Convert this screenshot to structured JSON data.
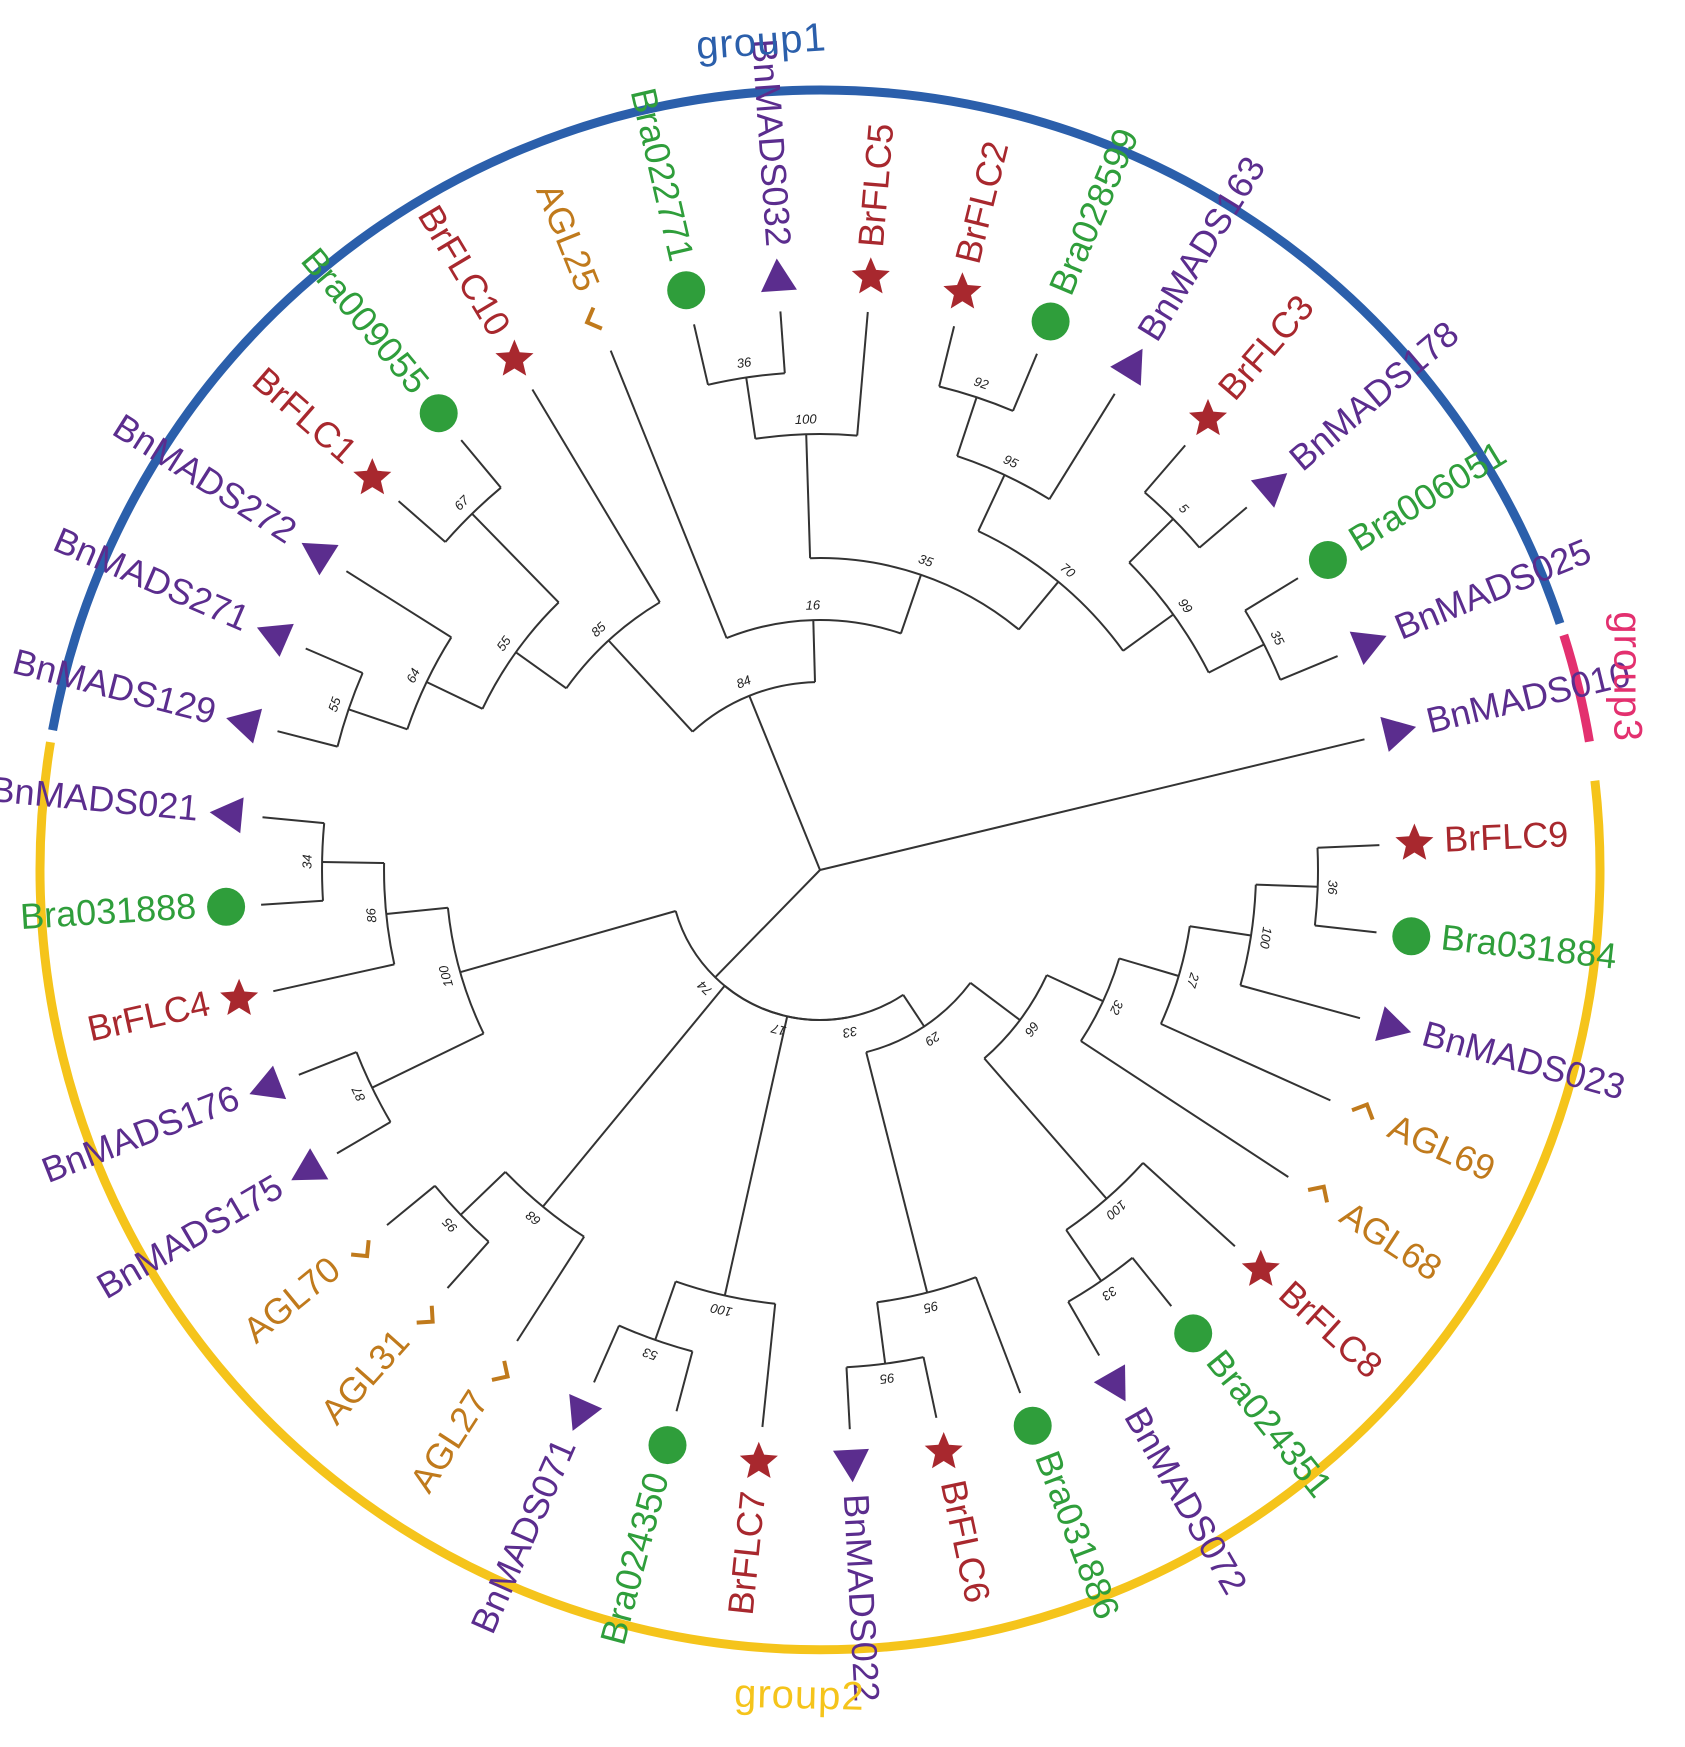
{
  "colors": {
    "group1": "#2b5fab",
    "group2": "#f5c41b",
    "group3": "#e3306f",
    "BnMADS": "#5b2d8e",
    "BrFLC": "#a8282e",
    "Bra": "#2f9e3b",
    "AGL": "#c07a1c",
    "branch": "#333333"
  },
  "groups": [
    {
      "id": "group1",
      "label": "group1",
      "color": "#2b5fab"
    },
    {
      "id": "group2",
      "label": "group2",
      "color": "#f5c41b"
    },
    {
      "id": "group3",
      "label": "group3",
      "color": "#e3306f"
    }
  ],
  "marker_legend": {
    "BnMADS": "blue-triangle",
    "BrFLC": "red-star",
    "Bra": "green-circle",
    "AGL": "orange-corner"
  },
  "leaves": [
    {
      "name": "BnMADS010",
      "family": "BnMADS",
      "group": "group3"
    },
    {
      "name": "BnMADS025",
      "family": "BnMADS",
      "group": "group1"
    },
    {
      "name": "Bra006051",
      "family": "Bra",
      "group": "group1"
    },
    {
      "name": "BnMADS178",
      "family": "BnMADS",
      "group": "group1"
    },
    {
      "name": "BrFLC3",
      "family": "BrFLC",
      "group": "group1"
    },
    {
      "name": "BnMADS163",
      "family": "BnMADS",
      "group": "group1"
    },
    {
      "name": "Bra028599",
      "family": "Bra",
      "group": "group1"
    },
    {
      "name": "BrFLC2",
      "family": "BrFLC",
      "group": "group1"
    },
    {
      "name": "BrFLC5",
      "family": "BrFLC",
      "group": "group1"
    },
    {
      "name": "BnMADS032",
      "family": "BnMADS",
      "group": "group1"
    },
    {
      "name": "Bra022771",
      "family": "Bra",
      "group": "group1"
    },
    {
      "name": "AGL25",
      "family": "AGL",
      "group": "group1"
    },
    {
      "name": "BrFLC10",
      "family": "BrFLC",
      "group": "group1"
    },
    {
      "name": "Bra009055",
      "family": "Bra",
      "group": "group1"
    },
    {
      "name": "BrFLC1",
      "family": "BrFLC",
      "group": "group1"
    },
    {
      "name": "BnMADS272",
      "family": "BnMADS",
      "group": "group1"
    },
    {
      "name": "BnMADS271",
      "family": "BnMADS",
      "group": "group1"
    },
    {
      "name": "BnMADS129",
      "family": "BnMADS",
      "group": "group1"
    },
    {
      "name": "BnMADS021",
      "family": "BnMADS",
      "group": "group2"
    },
    {
      "name": "Bra031888",
      "family": "Bra",
      "group": "group2"
    },
    {
      "name": "BrFLC4",
      "family": "BrFLC",
      "group": "group2"
    },
    {
      "name": "BnMADS176",
      "family": "BnMADS",
      "group": "group2"
    },
    {
      "name": "BnMADS175",
      "family": "BnMADS",
      "group": "group2"
    },
    {
      "name": "AGL70",
      "family": "AGL",
      "group": "group2"
    },
    {
      "name": "AGL31",
      "family": "AGL",
      "group": "group2"
    },
    {
      "name": "AGL27",
      "family": "AGL",
      "group": "group2"
    },
    {
      "name": "BnMADS071",
      "family": "BnMADS",
      "group": "group2"
    },
    {
      "name": "Bra024350",
      "family": "Bra",
      "group": "group2"
    },
    {
      "name": "BrFLC7",
      "family": "BrFLC",
      "group": "group2"
    },
    {
      "name": "BnMADS022",
      "family": "BnMADS",
      "group": "group2"
    },
    {
      "name": "BrFLC6",
      "family": "BrFLC",
      "group": "group2"
    },
    {
      "name": "Bra031886",
      "family": "Bra",
      "group": "group2"
    },
    {
      "name": "BnMADS072",
      "family": "BnMADS",
      "group": "group2"
    },
    {
      "name": "Bra024351",
      "family": "Bra",
      "group": "group2"
    },
    {
      "name": "BrFLC8",
      "family": "BrFLC",
      "group": "group2"
    },
    {
      "name": "AGL68",
      "family": "AGL",
      "group": "group2"
    },
    {
      "name": "AGL69",
      "family": "AGL",
      "group": "group2"
    },
    {
      "name": "BnMADS023",
      "family": "BnMADS",
      "group": "group2"
    },
    {
      "name": "Bra031884",
      "family": "Bra",
      "group": "group2"
    },
    {
      "name": "BrFLC9",
      "family": "BrFLC",
      "group": "group2"
    }
  ],
  "tree": {
    "children": [
      {
        "leaf": "BnMADS010"
      },
      {
        "support": "84",
        "children": [
          {
            "support": "16",
            "children": [
              {
                "support": "35",
                "children": [
                  {
                    "support": "70",
                    "children": [
                      {
                        "support": "99",
                        "children": [
                          {
                            "support": "35",
                            "children": [
                              {
                                "leaf": "BnMADS025"
                              },
                              {
                                "leaf": "Bra006051"
                              }
                            ]
                          },
                          {
                            "support": "5",
                            "children": [
                              {
                                "leaf": "BnMADS178"
                              },
                              {
                                "leaf": "BrFLC3"
                              }
                            ]
                          }
                        ]
                      },
                      {
                        "support": "95",
                        "children": [
                          {
                            "leaf": "BnMADS163"
                          },
                          {
                            "support": "92",
                            "children": [
                              {
                                "leaf": "Bra028599"
                              },
                              {
                                "leaf": "BrFLC2"
                              }
                            ]
                          }
                        ]
                      }
                    ]
                  },
                  {
                    "support": "100",
                    "children": [
                      {
                        "leaf": "BrFLC5"
                      },
                      {
                        "support": "36",
                        "children": [
                          {
                            "leaf": "BnMADS032"
                          },
                          {
                            "leaf": "Bra022771"
                          }
                        ]
                      }
                    ]
                  }
                ]
              },
              {
                "leaf": "AGL25"
              }
            ]
          },
          {
            "support": "85",
            "children": [
              {
                "leaf": "BrFLC10"
              },
              {
                "support": "55",
                "children": [
                  {
                    "support": "67",
                    "children": [
                      {
                        "leaf": "Bra009055"
                      },
                      {
                        "leaf": "BrFLC1"
                      }
                    ]
                  },
                  {
                    "support": "64",
                    "children": [
                      {
                        "leaf": "BnMADS272"
                      },
                      {
                        "support": "55",
                        "children": [
                          {
                            "leaf": "BnMADS271"
                          },
                          {
                            "leaf": "BnMADS129"
                          }
                        ]
                      }
                    ]
                  }
                ]
              }
            ]
          }
        ]
      },
      {
        "support": "74",
        "children": [
          {
            "support": "100",
            "children": [
              {
                "support": "86",
                "children": [
                  {
                    "support": "34",
                    "children": [
                      {
                        "leaf": "BnMADS021"
                      },
                      {
                        "leaf": "Bra031888"
                      }
                    ]
                  },
                  {
                    "leaf": "BrFLC4"
                  }
                ]
              },
              {
                "support": "87",
                "children": [
                  {
                    "leaf": "BnMADS176"
                  },
                  {
                    "leaf": "BnMADS175"
                  }
                ]
              }
            ]
          },
          {
            "support": "17",
            "children": [
              {
                "support": "68",
                "children": [
                  {
                    "support": "95",
                    "children": [
                      {
                        "leaf": "AGL70"
                      },
                      {
                        "leaf": "AGL31"
                      }
                    ]
                  },
                  {
                    "leaf": "AGL27"
                  }
                ]
              },
              {
                "support": "33",
                "children": [
                  {
                    "support": "100",
                    "children": [
                      {
                        "support": "53",
                        "children": [
                          {
                            "leaf": "BnMADS071"
                          },
                          {
                            "leaf": "Bra024350"
                          }
                        ]
                      },
                      {
                        "leaf": "BrFLC7"
                      }
                    ]
                  },
                  {
                    "support": "29",
                    "children": [
                      {
                        "support": "95",
                        "children": [
                          {
                            "support": "95",
                            "children": [
                              {
                                "leaf": "BnMADS022"
                              },
                              {
                                "leaf": "BrFLC6"
                              }
                            ]
                          },
                          {
                            "leaf": "Bra031886"
                          }
                        ]
                      },
                      {
                        "support": "66",
                        "children": [
                          {
                            "support": "100",
                            "children": [
                              {
                                "support": "33",
                                "children": [
                                  {
                                    "leaf": "BnMADS072"
                                  },
                                  {
                                    "leaf": "Bra024351"
                                  }
                                ]
                              },
                              {
                                "leaf": "BrFLC8"
                              }
                            ]
                          },
                          {
                            "support": "32",
                            "children": [
                              {
                                "leaf": "AGL68"
                              },
                              {
                                "support": "27",
                                "children": [
                                  {
                                    "leaf": "AGL69"
                                  },
                                  {
                                    "support": "100",
                                    "children": [
                                      {
                                        "leaf": "BnMADS023"
                                      },
                                      {
                                        "support": "36",
                                        "children": [
                                          {
                                            "leaf": "Bra031884"
                                          },
                                          {
                                            "leaf": "BrFLC9"
                                          }
                                        ]
                                      }
                                    ]
                                  }
                                ]
                              }
                            ]
                          }
                        ]
                      }
                    ]
                  }
                ]
              }
            ]
          }
        ]
      }
    ]
  }
}
